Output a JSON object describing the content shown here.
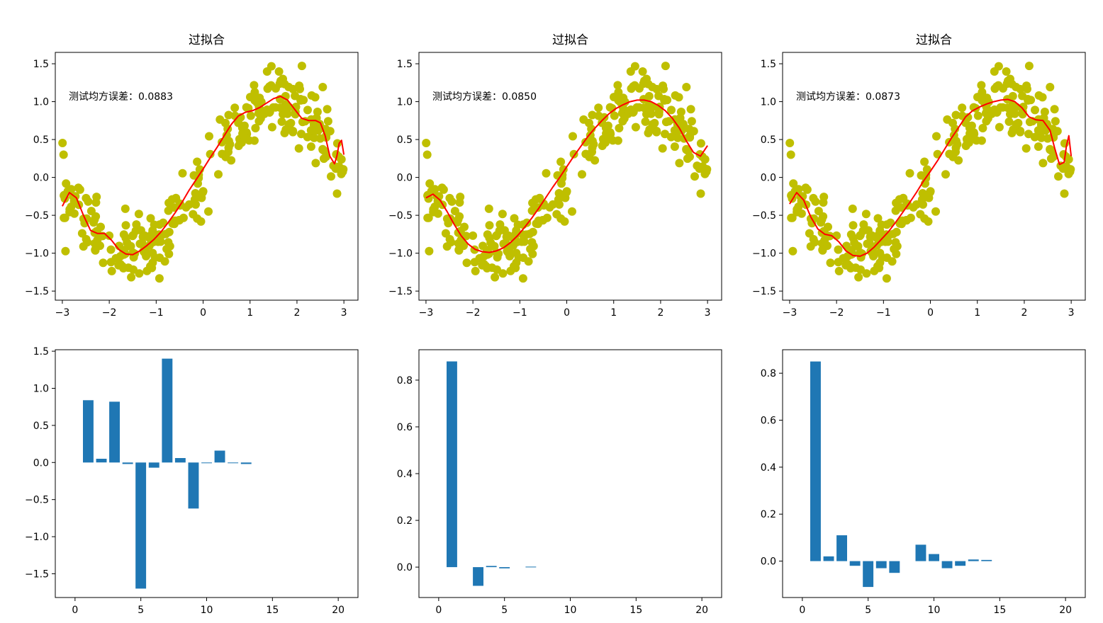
{
  "chart_data": [
    {
      "type": "scatter",
      "title": "过拟合",
      "annotation": "测试均方误差：0.0883",
      "xlim": [
        -3.15,
        3.3
      ],
      "ylim": [
        -1.62,
        1.65
      ],
      "xticks": [
        -3,
        -2,
        -1,
        0,
        1,
        2,
        3
      ],
      "yticks": [
        -1.5,
        -1.0,
        -0.5,
        0.0,
        0.5,
        1.0,
        1.5
      ],
      "xtick_labels": [
        "−3",
        "−2",
        "−1",
        "0",
        "1",
        "2",
        "3"
      ],
      "ytick_labels": [
        "−1.5",
        "−1.0",
        "−0.5",
        "0.0",
        "0.5",
        "1.0",
        "1.5"
      ],
      "scatter_color": "#bfbf00",
      "scatter_description": "about 300 noisy samples of y = sin(x) for x in [-3, 3]",
      "fit": {
        "color": "#ff0000",
        "x": [
          -3.0,
          -2.85,
          -2.7,
          -2.55,
          -2.4,
          -2.25,
          -2.1,
          -1.95,
          -1.8,
          -1.65,
          -1.5,
          -1.35,
          -1.2,
          -1.05,
          -0.9,
          -0.75,
          -0.6,
          -0.45,
          -0.3,
          -0.15,
          0.0,
          0.15,
          0.3,
          0.45,
          0.6,
          0.75,
          0.9,
          1.05,
          1.2,
          1.35,
          1.5,
          1.65,
          1.8,
          1.95,
          2.1,
          2.25,
          2.4,
          2.5,
          2.6,
          2.7,
          2.8,
          2.85,
          2.9,
          2.95,
          3.0
        ],
        "y": [
          -0.38,
          -0.2,
          -0.27,
          -0.5,
          -0.7,
          -0.74,
          -0.74,
          -0.83,
          -0.95,
          -1.01,
          -1.02,
          -0.97,
          -0.9,
          -0.82,
          -0.72,
          -0.6,
          -0.47,
          -0.33,
          -0.17,
          -0.03,
          0.11,
          0.26,
          0.4,
          0.55,
          0.7,
          0.81,
          0.86,
          0.88,
          0.92,
          0.98,
          1.04,
          1.07,
          1.02,
          0.9,
          0.78,
          0.75,
          0.75,
          0.72,
          0.55,
          0.28,
          0.18,
          0.28,
          0.45,
          0.49,
          0.3
        ]
      }
    },
    {
      "type": "scatter",
      "title": "过拟合",
      "annotation": "测试均方误差：0.0850",
      "xlim": [
        -3.15,
        3.3
      ],
      "ylim": [
        -1.62,
        1.65
      ],
      "xticks": [
        -3,
        -2,
        -1,
        0,
        1,
        2,
        3
      ],
      "yticks": [
        -1.5,
        -1.0,
        -0.5,
        0.0,
        0.5,
        1.0,
        1.5
      ],
      "xtick_labels": [
        "−3",
        "−2",
        "−1",
        "0",
        "1",
        "2",
        "3"
      ],
      "ytick_labels": [
        "−1.5",
        "−1.0",
        "−0.5",
        "0.0",
        "0.5",
        "1.0",
        "1.5"
      ],
      "scatter_color": "#bfbf00",
      "scatter_description": "about 300 noisy samples of y = sin(x) for x in [-3, 3]",
      "fit": {
        "color": "#ff0000",
        "x": [
          -3.0,
          -2.85,
          -2.7,
          -2.55,
          -2.4,
          -2.25,
          -2.1,
          -1.95,
          -1.8,
          -1.65,
          -1.5,
          -1.35,
          -1.2,
          -1.05,
          -0.9,
          -0.75,
          -0.6,
          -0.45,
          -0.3,
          -0.15,
          0.0,
          0.15,
          0.3,
          0.45,
          0.6,
          0.75,
          0.9,
          1.05,
          1.2,
          1.35,
          1.5,
          1.65,
          1.8,
          1.95,
          2.1,
          2.25,
          2.4,
          2.55,
          2.7,
          2.85,
          3.0
        ],
        "y": [
          -0.27,
          -0.22,
          -0.3,
          -0.45,
          -0.62,
          -0.77,
          -0.88,
          -0.95,
          -0.98,
          -0.99,
          -0.97,
          -0.93,
          -0.86,
          -0.77,
          -0.66,
          -0.54,
          -0.41,
          -0.27,
          -0.13,
          0.0,
          0.14,
          0.28,
          0.41,
          0.54,
          0.65,
          0.75,
          0.84,
          0.91,
          0.96,
          1.0,
          1.02,
          1.02,
          1.0,
          0.95,
          0.88,
          0.78,
          0.65,
          0.48,
          0.33,
          0.28,
          0.42
        ]
      }
    },
    {
      "type": "scatter",
      "title": "过拟合",
      "annotation": "测试均方误差：0.0873",
      "xlim": [
        -3.15,
        3.3
      ],
      "ylim": [
        -1.62,
        1.65
      ],
      "xticks": [
        -3,
        -2,
        -1,
        0,
        1,
        2,
        3
      ],
      "yticks": [
        -1.5,
        -1.0,
        -0.5,
        0.0,
        0.5,
        1.0,
        1.5
      ],
      "xtick_labels": [
        "−3",
        "−2",
        "−1",
        "0",
        "1",
        "2",
        "3"
      ],
      "ytick_labels": [
        "−1.5",
        "−1.0",
        "−0.5",
        "0.0",
        "0.5",
        "1.0",
        "1.5"
      ],
      "scatter_color": "#bfbf00",
      "scatter_description": "about 300 noisy samples of y = sin(x) for x in [-3, 3]",
      "fit": {
        "color": "#ff0000",
        "x": [
          -3.0,
          -2.85,
          -2.7,
          -2.55,
          -2.4,
          -2.25,
          -2.1,
          -1.95,
          -1.8,
          -1.65,
          -1.5,
          -1.35,
          -1.2,
          -1.05,
          -0.9,
          -0.75,
          -0.6,
          -0.45,
          -0.3,
          -0.15,
          0.0,
          0.15,
          0.3,
          0.45,
          0.6,
          0.75,
          0.9,
          1.05,
          1.2,
          1.35,
          1.5,
          1.65,
          1.8,
          1.95,
          2.1,
          2.25,
          2.4,
          2.55,
          2.65,
          2.75,
          2.85,
          2.9,
          2.95,
          3.0
        ],
        "y": [
          -0.35,
          -0.2,
          -0.3,
          -0.52,
          -0.68,
          -0.75,
          -0.77,
          -0.85,
          -0.97,
          -1.03,
          -1.04,
          -1.0,
          -0.92,
          -0.82,
          -0.72,
          -0.6,
          -0.47,
          -0.34,
          -0.2,
          -0.05,
          0.08,
          0.22,
          0.37,
          0.52,
          0.66,
          0.8,
          0.88,
          0.93,
          0.97,
          1.0,
          1.02,
          1.03,
          1.0,
          0.92,
          0.8,
          0.76,
          0.75,
          0.62,
          0.38,
          0.17,
          0.2,
          0.42,
          0.55,
          0.28
        ]
      }
    },
    {
      "type": "bar",
      "title": "",
      "xlim": [
        -1.5,
        21.5
      ],
      "ylim": [
        -1.82,
        1.52
      ],
      "xticks": [
        0,
        5,
        10,
        15,
        20
      ],
      "yticks": [
        -1.5,
        -1.0,
        -0.5,
        0.0,
        0.5,
        1.0,
        1.5
      ],
      "xtick_labels": [
        "0",
        "5",
        "10",
        "15",
        "20"
      ],
      "ytick_labels": [
        "−1.5",
        "−1.0",
        "−0.5",
        "0.0",
        "0.5",
        "1.0",
        "1.5"
      ],
      "bar_color": "#1f77b4",
      "categories": [
        1,
        2,
        3,
        4,
        5,
        6,
        7,
        8,
        9,
        10,
        11,
        12,
        13
      ],
      "values": [
        0.84,
        0.05,
        0.82,
        -0.02,
        -1.7,
        -0.07,
        1.4,
        0.06,
        -0.62,
        0.0,
        0.16,
        -0.005,
        -0.02
      ]
    },
    {
      "type": "bar",
      "title": "",
      "xlim": [
        -1.5,
        21.5
      ],
      "ylim": [
        -0.13,
        0.93
      ],
      "xticks": [
        0,
        5,
        10,
        15,
        20
      ],
      "yticks": [
        0.0,
        0.2,
        0.4,
        0.6,
        0.8
      ],
      "xtick_labels": [
        "0",
        "5",
        "10",
        "15",
        "20"
      ],
      "ytick_labels": [
        "0.0",
        "0.2",
        "0.4",
        "0.6",
        "0.8"
      ],
      "bar_color": "#1f77b4",
      "categories": [
        1,
        3,
        4,
        5,
        7
      ],
      "values": [
        0.88,
        -0.08,
        0.005,
        -0.005,
        0.002
      ]
    },
    {
      "type": "bar",
      "title": "",
      "xlim": [
        -1.5,
        21.5
      ],
      "ylim": [
        -0.155,
        0.9
      ],
      "xticks": [
        0,
        5,
        10,
        15,
        20
      ],
      "yticks": [
        0.0,
        0.2,
        0.4,
        0.6,
        0.8
      ],
      "xtick_labels": [
        "0",
        "5",
        "10",
        "15",
        "20"
      ],
      "ytick_labels": [
        "0.0",
        "0.2",
        "0.4",
        "0.6",
        "0.8"
      ],
      "bar_color": "#1f77b4",
      "categories": [
        1,
        2,
        3,
        4,
        5,
        6,
        7,
        9,
        10,
        11,
        12,
        13,
        14
      ],
      "values": [
        0.85,
        0.02,
        0.11,
        -0.02,
        -0.11,
        -0.03,
        -0.05,
        0.07,
        0.03,
        -0.03,
        -0.02,
        0.007,
        0.005
      ]
    }
  ]
}
